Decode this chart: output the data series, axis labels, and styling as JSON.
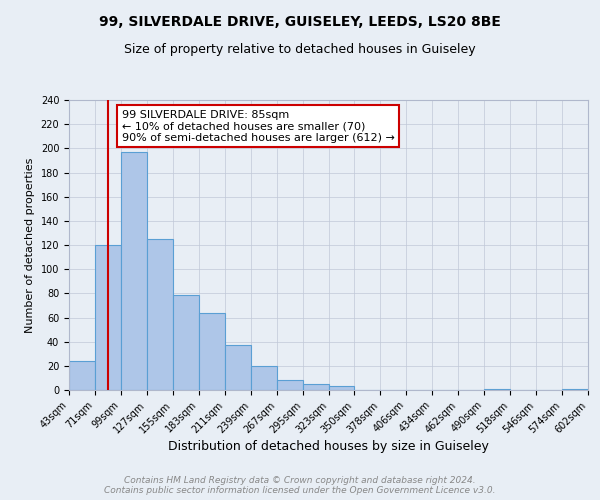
{
  "title": "99, SILVERDALE DRIVE, GUISELEY, LEEDS, LS20 8BE",
  "subtitle": "Size of property relative to detached houses in Guiseley",
  "xlabel": "Distribution of detached houses by size in Guiseley",
  "ylabel": "Number of detached properties",
  "bin_edges": [
    43,
    71,
    99,
    127,
    155,
    183,
    211,
    239,
    267,
    295,
    323,
    350,
    378,
    406,
    434,
    462,
    490,
    518,
    546,
    574,
    602
  ],
  "bar_heights": [
    24,
    120,
    197,
    125,
    79,
    64,
    37,
    20,
    8,
    5,
    3,
    0,
    0,
    0,
    0,
    0,
    1,
    0,
    0,
    1
  ],
  "bar_color": "#aec6e8",
  "bar_edge_color": "#5a9fd4",
  "vline_x": 85,
  "vline_color": "#cc0000",
  "annotation_line1": "99 SILVERDALE DRIVE: 85sqm",
  "annotation_line2": "← 10% of detached houses are smaller (70)",
  "annotation_line3": "90% of semi-detached houses are larger (612) →",
  "annotation_box_color": "#ffffff",
  "annotation_box_edge_color": "#cc0000",
  "ylim": [
    0,
    240
  ],
  "bg_color": "#e8eef5",
  "plot_bg_color": "#e8eef5",
  "footer_line1": "Contains HM Land Registry data © Crown copyright and database right 2024.",
  "footer_line2": "Contains public sector information licensed under the Open Government Licence v3.0.",
  "title_fontsize": 10,
  "subtitle_fontsize": 9,
  "xlabel_fontsize": 9,
  "ylabel_fontsize": 8,
  "tick_label_fontsize": 7,
  "annotation_fontsize": 8,
  "footer_fontsize": 6.5
}
